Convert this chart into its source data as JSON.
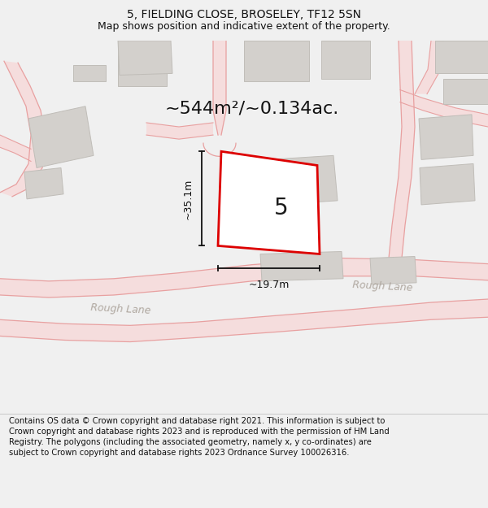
{
  "title_line1": "5, FIELDING CLOSE, BROSELEY, TF12 5SN",
  "title_line2": "Map shows position and indicative extent of the property.",
  "area_label": "~544m²/~0.134ac.",
  "plot_number": "5",
  "dim_width": "~19.7m",
  "dim_height": "~35.1m",
  "road_label_left": "Rough Lane",
  "road_label_right": "Rough Lane",
  "footer_text": "Contains OS data © Crown copyright and database right 2021. This information is subject to Crown copyright and database rights 2023 and is reproduced with the permission of HM Land Registry. The polygons (including the associated geometry, namely x, y co-ordinates) are subject to Crown copyright and database rights 2023 Ordnance Survey 100026316.",
  "bg_color": "#f0f0f0",
  "map_bg": "#f8f6f4",
  "plot_fill": "#ffffff",
  "plot_edge": "#dd0000",
  "road_fill": "#f5dddd",
  "road_edge": "#e8a0a0",
  "building_fill": "#d3d0cc",
  "building_edge": "#c0bdb8",
  "dim_color": "#111111",
  "title_fontsize": 10,
  "subtitle_fontsize": 9,
  "area_fontsize": 16,
  "plot_num_fontsize": 20,
  "road_label_fontsize": 9,
  "footer_fontsize": 7.2
}
